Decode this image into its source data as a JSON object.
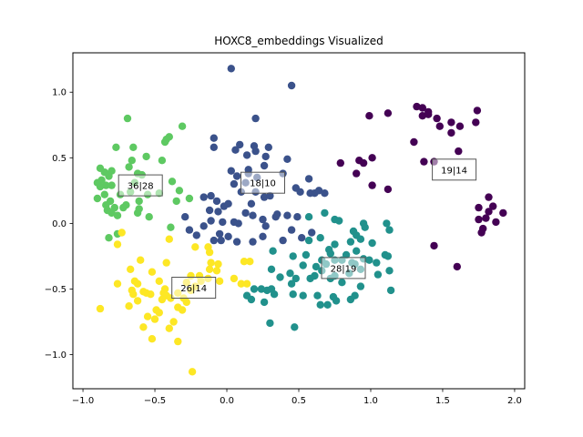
{
  "chart_data": {
    "type": "scatter",
    "title": "HOXC8_embeddings Visualized",
    "xlabel": "",
    "ylabel": "",
    "xlim": [
      -1.07,
      2.07
    ],
    "ylim": [
      -1.26,
      1.3
    ],
    "xticks": [
      -1.0,
      -0.5,
      0.0,
      0.5,
      1.0,
      1.5,
      2.0
    ],
    "xtick_labels": [
      "−1.0",
      "−0.5",
      "0.0",
      "0.5",
      "1.0",
      "1.5",
      "2.0"
    ],
    "yticks": [
      -1.0,
      -0.5,
      0.0,
      0.5,
      1.0
    ],
    "ytick_labels": [
      "−1.0",
      "−0.5",
      "0.0",
      "0.5",
      "1.0"
    ],
    "grid": false,
    "colors": {
      "purple": "#440154",
      "navy": "#3b528b",
      "teal": "#21918c",
      "green": "#5ec962",
      "yellow": "#fde725",
      "box_border": "#555555"
    },
    "annotations": [
      {
        "text": "36|28",
        "x": -0.6,
        "y": 0.29
      },
      {
        "text": "18|10",
        "x": 0.25,
        "y": 0.31
      },
      {
        "text": "19|14",
        "x": 1.58,
        "y": 0.41
      },
      {
        "text": "28|19",
        "x": 0.81,
        "y": -0.34
      },
      {
        "text": "26|14",
        "x": -0.23,
        "y": -0.49
      }
    ],
    "series": [
      {
        "color": "#5ec962",
        "points": [
          [
            -0.69,
            0.8
          ],
          [
            -0.77,
            0.58
          ],
          [
            -0.65,
            0.58
          ],
          [
            -0.56,
            0.51
          ],
          [
            -0.45,
            0.48
          ],
          [
            -0.42,
            0.64
          ],
          [
            -0.43,
            0.62
          ],
          [
            -0.4,
            0.66
          ],
          [
            -0.31,
            0.74
          ],
          [
            -0.88,
            0.42
          ],
          [
            -0.85,
            0.39
          ],
          [
            -0.82,
            0.36
          ],
          [
            -0.8,
            0.4
          ],
          [
            -0.87,
            0.33
          ],
          [
            -0.9,
            0.31
          ],
          [
            -0.84,
            0.29
          ],
          [
            -0.8,
            0.29
          ],
          [
            -0.68,
            0.43
          ],
          [
            -0.62,
            0.38
          ],
          [
            -0.59,
            0.37
          ],
          [
            -0.64,
            0.31
          ],
          [
            -0.67,
            0.24
          ],
          [
            -0.74,
            0.22
          ],
          [
            -0.55,
            0.22
          ],
          [
            -0.47,
            0.23
          ],
          [
            -0.85,
            0.22
          ],
          [
            -0.81,
            0.17
          ],
          [
            -0.9,
            0.19
          ],
          [
            -0.78,
            0.12
          ],
          [
            -0.72,
            0.12
          ],
          [
            -0.83,
            0.1
          ],
          [
            -0.8,
            0.08
          ],
          [
            -0.76,
            0.06
          ],
          [
            -0.84,
            0.14
          ],
          [
            -0.61,
            0.17
          ],
          [
            -0.62,
            0.08
          ],
          [
            -0.61,
            0.11
          ],
          [
            -0.38,
            0.32
          ],
          [
            -0.33,
            0.25
          ],
          [
            -0.26,
            0.19
          ],
          [
            -0.35,
            0.17
          ],
          [
            -0.54,
            0.05
          ],
          [
            -0.39,
            -0.03
          ],
          [
            -0.82,
            -0.11
          ],
          [
            -0.76,
            -0.08
          ],
          [
            -0.7,
            0.14
          ],
          [
            -0.88,
            0.28
          ],
          [
            -0.66,
            0.48
          ]
        ]
      },
      {
        "color": "#3b528b",
        "points": [
          [
            0.03,
            1.18
          ],
          [
            0.45,
            1.05
          ],
          [
            -0.09,
            0.65
          ],
          [
            0.2,
            0.8
          ],
          [
            -0.09,
            0.58
          ],
          [
            0.09,
            0.6
          ],
          [
            0.06,
            0.56
          ],
          [
            0.19,
            0.59
          ],
          [
            0.29,
            0.58
          ],
          [
            0.14,
            0.52
          ],
          [
            0.2,
            0.55
          ],
          [
            0.27,
            0.51
          ],
          [
            0.42,
            0.49
          ],
          [
            0.39,
            0.38
          ],
          [
            0.03,
            0.4
          ],
          [
            0.07,
            0.36
          ],
          [
            0.15,
            0.41
          ],
          [
            0.15,
            0.38
          ],
          [
            0.13,
            0.31
          ],
          [
            0.05,
            0.3
          ],
          [
            0.1,
            0.24
          ],
          [
            0.2,
            0.24
          ],
          [
            0.26,
            0.2
          ],
          [
            0.3,
            0.21
          ],
          [
            0.48,
            0.27
          ],
          [
            0.51,
            0.24
          ],
          [
            0.57,
            0.34
          ],
          [
            0.61,
            0.23
          ],
          [
            0.64,
            0.25
          ],
          [
            0.58,
            0.23
          ],
          [
            0.68,
            0.23
          ],
          [
            -0.16,
            0.2
          ],
          [
            -0.11,
            0.21
          ],
          [
            -0.07,
            0.17
          ],
          [
            -0.02,
            0.13
          ],
          [
            0.01,
            0.15
          ],
          [
            0.17,
            0.15
          ],
          [
            -0.12,
            0.1
          ],
          [
            -0.06,
            0.09
          ],
          [
            -0.29,
            0.05
          ],
          [
            -0.11,
            0.02
          ],
          [
            -0.03,
            0.01
          ],
          [
            0.05,
            0.01
          ],
          [
            0.08,
            0.0
          ],
          [
            0.18,
            0.06
          ],
          [
            0.25,
            0.03
          ],
          [
            0.35,
            0.07
          ],
          [
            0.42,
            0.06
          ],
          [
            0.49,
            0.05
          ],
          [
            0.27,
            -0.02
          ],
          [
            0.45,
            -0.05
          ],
          [
            0.59,
            -0.07
          ],
          [
            -0.05,
            -0.08
          ],
          [
            0.01,
            -0.1
          ],
          [
            0.07,
            -0.14
          ],
          [
            0.18,
            -0.14
          ],
          [
            0.25,
            -0.1
          ],
          [
            0.39,
            -0.13
          ],
          [
            0.52,
            -0.11
          ],
          [
            -0.04,
            -0.13
          ],
          [
            -0.09,
            -0.13
          ],
          [
            -0.21,
            -0.09
          ],
          [
            -0.26,
            -0.05
          ],
          [
            -0.16,
            -0.02
          ],
          [
            0.34,
            0.05
          ],
          [
            0.13,
            0.08
          ],
          [
            0.21,
            0.35
          ],
          [
            0.26,
            0.44
          ]
        ]
      },
      {
        "color": "#21918c",
        "points": [
          [
            0.57,
            0.05
          ],
          [
            0.68,
            0.08
          ],
          [
            0.75,
            0.03
          ],
          [
            0.78,
            0.02
          ],
          [
            0.95,
            0.0
          ],
          [
            1.11,
            0.0
          ],
          [
            0.88,
            -0.06
          ],
          [
            0.9,
            -0.09
          ],
          [
            0.96,
            -0.03
          ],
          [
            0.57,
            -0.13
          ],
          [
            0.65,
            -0.11
          ],
          [
            0.75,
            -0.16
          ],
          [
            0.86,
            -0.14
          ],
          [
            0.93,
            -0.12
          ],
          [
            1.01,
            -0.15
          ],
          [
            1.13,
            -0.05
          ],
          [
            1.1,
            -0.24
          ],
          [
            0.32,
            -0.21
          ],
          [
            0.46,
            -0.25
          ],
          [
            0.55,
            -0.24
          ],
          [
            0.71,
            -0.2
          ],
          [
            0.72,
            -0.23
          ],
          [
            0.83,
            -0.24
          ],
          [
            0.9,
            -0.21
          ],
          [
            0.95,
            -0.27
          ],
          [
            0.99,
            -0.28
          ],
          [
            1.04,
            -0.3
          ],
          [
            1.12,
            -0.25
          ],
          [
            0.8,
            -0.28
          ],
          [
            0.75,
            -0.28
          ],
          [
            0.66,
            -0.28
          ],
          [
            0.69,
            -0.31
          ],
          [
            0.62,
            -0.33
          ],
          [
            0.53,
            -0.32
          ],
          [
            0.31,
            -0.35
          ],
          [
            0.37,
            -0.41
          ],
          [
            0.45,
            -0.46
          ],
          [
            0.48,
            -0.42
          ],
          [
            0.58,
            -0.42
          ],
          [
            0.61,
            -0.4
          ],
          [
            0.66,
            -0.36
          ],
          [
            0.75,
            -0.4
          ],
          [
            0.85,
            -0.38
          ],
          [
            0.93,
            -0.35
          ],
          [
            0.87,
            -0.3
          ],
          [
            1.05,
            -0.39
          ],
          [
            1.13,
            -0.36
          ],
          [
            0.28,
            -0.51
          ],
          [
            0.31,
            -0.5
          ],
          [
            0.24,
            -0.5
          ],
          [
            0.19,
            -0.5
          ],
          [
            0.14,
            -0.55
          ],
          [
            0.26,
            -0.6
          ],
          [
            0.33,
            -0.54
          ],
          [
            0.46,
            -0.54
          ],
          [
            0.53,
            -0.55
          ],
          [
            0.63,
            -0.55
          ],
          [
            0.65,
            -0.62
          ],
          [
            0.7,
            -0.62
          ],
          [
            0.74,
            -0.56
          ],
          [
            0.76,
            -0.59
          ],
          [
            0.86,
            -0.58
          ],
          [
            0.89,
            -0.55
          ],
          [
            0.93,
            -0.48
          ],
          [
            0.8,
            -0.45
          ],
          [
            0.72,
            -0.42
          ],
          [
            1.14,
            -0.51
          ],
          [
            0.3,
            -0.76
          ],
          [
            0.47,
            -0.79
          ],
          [
            0.17,
            -0.58
          ],
          [
            0.89,
            -0.31
          ],
          [
            0.44,
            -0.38
          ]
        ]
      },
      {
        "color": "#fde725",
        "points": [
          [
            -0.4,
            -0.12
          ],
          [
            -0.22,
            -0.18
          ],
          [
            -0.13,
            -0.18
          ],
          [
            -0.73,
            -0.07
          ],
          [
            -0.76,
            -0.16
          ],
          [
            -0.6,
            -0.28
          ],
          [
            -0.67,
            -0.35
          ],
          [
            -0.42,
            -0.3
          ],
          [
            -0.12,
            -0.22
          ],
          [
            -0.11,
            -0.3
          ],
          [
            -0.06,
            -0.31
          ],
          [
            -0.52,
            -0.37
          ],
          [
            -0.25,
            -0.4
          ],
          [
            -0.19,
            -0.4
          ],
          [
            -0.12,
            -0.35
          ],
          [
            -0.07,
            -0.36
          ],
          [
            -0.13,
            -0.42
          ],
          [
            -0.05,
            -0.44
          ],
          [
            0.05,
            -0.42
          ],
          [
            0.1,
            -0.46
          ],
          [
            0.14,
            -0.46
          ],
          [
            0.12,
            -0.29
          ],
          [
            0.16,
            -0.29
          ],
          [
            -0.47,
            -0.44
          ],
          [
            -0.62,
            -0.46
          ],
          [
            -0.64,
            -0.44
          ],
          [
            -0.76,
            -0.46
          ],
          [
            -0.66,
            -0.51
          ],
          [
            -0.65,
            -0.54
          ],
          [
            -0.58,
            -0.52
          ],
          [
            -0.56,
            -0.53
          ],
          [
            -0.53,
            -0.54
          ],
          [
            -0.43,
            -0.5
          ],
          [
            -0.42,
            -0.55
          ],
          [
            -0.34,
            -0.53
          ],
          [
            -0.3,
            -0.57
          ],
          [
            -0.28,
            -0.6
          ],
          [
            -0.25,
            -0.51
          ],
          [
            -0.22,
            -0.48
          ],
          [
            -0.34,
            -0.64
          ],
          [
            -0.39,
            -0.57
          ],
          [
            -0.45,
            -0.58
          ],
          [
            -0.31,
            -0.66
          ],
          [
            -0.68,
            -0.63
          ],
          [
            -0.88,
            -0.65
          ],
          [
            -0.62,
            -0.59
          ],
          [
            -0.49,
            -0.66
          ],
          [
            -0.55,
            -0.71
          ],
          [
            -0.5,
            -0.73
          ],
          [
            -0.47,
            -0.68
          ],
          [
            -0.4,
            -0.8
          ],
          [
            -0.37,
            -0.75
          ],
          [
            -0.58,
            -0.79
          ],
          [
            -0.52,
            -0.88
          ],
          [
            -0.34,
            -0.9
          ],
          [
            -0.24,
            -1.13
          ],
          [
            -0.44,
            -0.53
          ],
          [
            -0.18,
            -0.44
          ],
          [
            -0.28,
            -0.45
          ]
        ]
      },
      {
        "color": "#440154",
        "points": [
          [
            1.32,
            0.89
          ],
          [
            1.36,
            0.88
          ],
          [
            1.4,
            0.85
          ],
          [
            1.36,
            0.82
          ],
          [
            1.46,
            0.8
          ],
          [
            1.56,
            0.77
          ],
          [
            1.74,
            0.86
          ],
          [
            1.73,
            0.77
          ],
          [
            1.62,
            0.74
          ],
          [
            0.99,
            0.82
          ],
          [
            1.12,
            0.84
          ],
          [
            1.56,
            0.69
          ],
          [
            1.3,
            0.62
          ],
          [
            1.61,
            0.55
          ],
          [
            1.01,
            0.5
          ],
          [
            0.92,
            0.48
          ],
          [
            0.79,
            0.46
          ],
          [
            0.95,
            0.46
          ],
          [
            0.9,
            0.38
          ],
          [
            1.37,
            0.47
          ],
          [
            1.44,
            0.47
          ],
          [
            1.01,
            0.29
          ],
          [
            1.12,
            0.26
          ],
          [
            1.82,
            0.2
          ],
          [
            1.85,
            0.13
          ],
          [
            1.75,
            0.12
          ],
          [
            1.82,
            0.09
          ],
          [
            1.8,
            0.04
          ],
          [
            1.92,
            0.08
          ],
          [
            1.75,
            0.03
          ],
          [
            1.87,
            0.01
          ],
          [
            1.78,
            -0.04
          ],
          [
            1.77,
            -0.07
          ],
          [
            1.44,
            -0.17
          ],
          [
            1.6,
            -0.33
          ],
          [
            1.48,
            0.74
          ],
          [
            1.4,
            0.83
          ]
        ]
      }
    ]
  }
}
